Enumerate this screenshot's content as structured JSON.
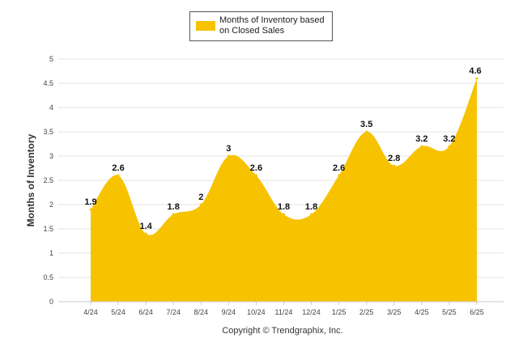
{
  "chart_data": {
    "type": "area",
    "categories": [
      "4/24",
      "5/24",
      "6/24",
      "7/24",
      "8/24",
      "9/24",
      "10/24",
      "11/24",
      "12/24",
      "1/25",
      "2/25",
      "3/25",
      "4/25",
      "5/25",
      "6/25"
    ],
    "series": [
      {
        "name": "Months of Inventory based on Closed Sales",
        "values": [
          1.9,
          2.6,
          1.4,
          1.8,
          2,
          3,
          2.6,
          1.8,
          1.8,
          2.6,
          3.5,
          2.8,
          3.2,
          3.2,
          4.6
        ],
        "color": "#f7c300"
      }
    ],
    "legend_lines": [
      "Months of Inventory based",
      "on Closed Sales"
    ],
    "legend_position": "top-center",
    "ylabel": "Months of Inventory",
    "ylim": [
      0,
      5
    ],
    "yticks": [
      "0",
      "0.5",
      "1",
      "1.5",
      "2",
      "2.5",
      "3",
      "3.5",
      "4",
      "4.5",
      "5"
    ],
    "grid": true
  },
  "footer": "Copyright © Trendgraphix, Inc."
}
